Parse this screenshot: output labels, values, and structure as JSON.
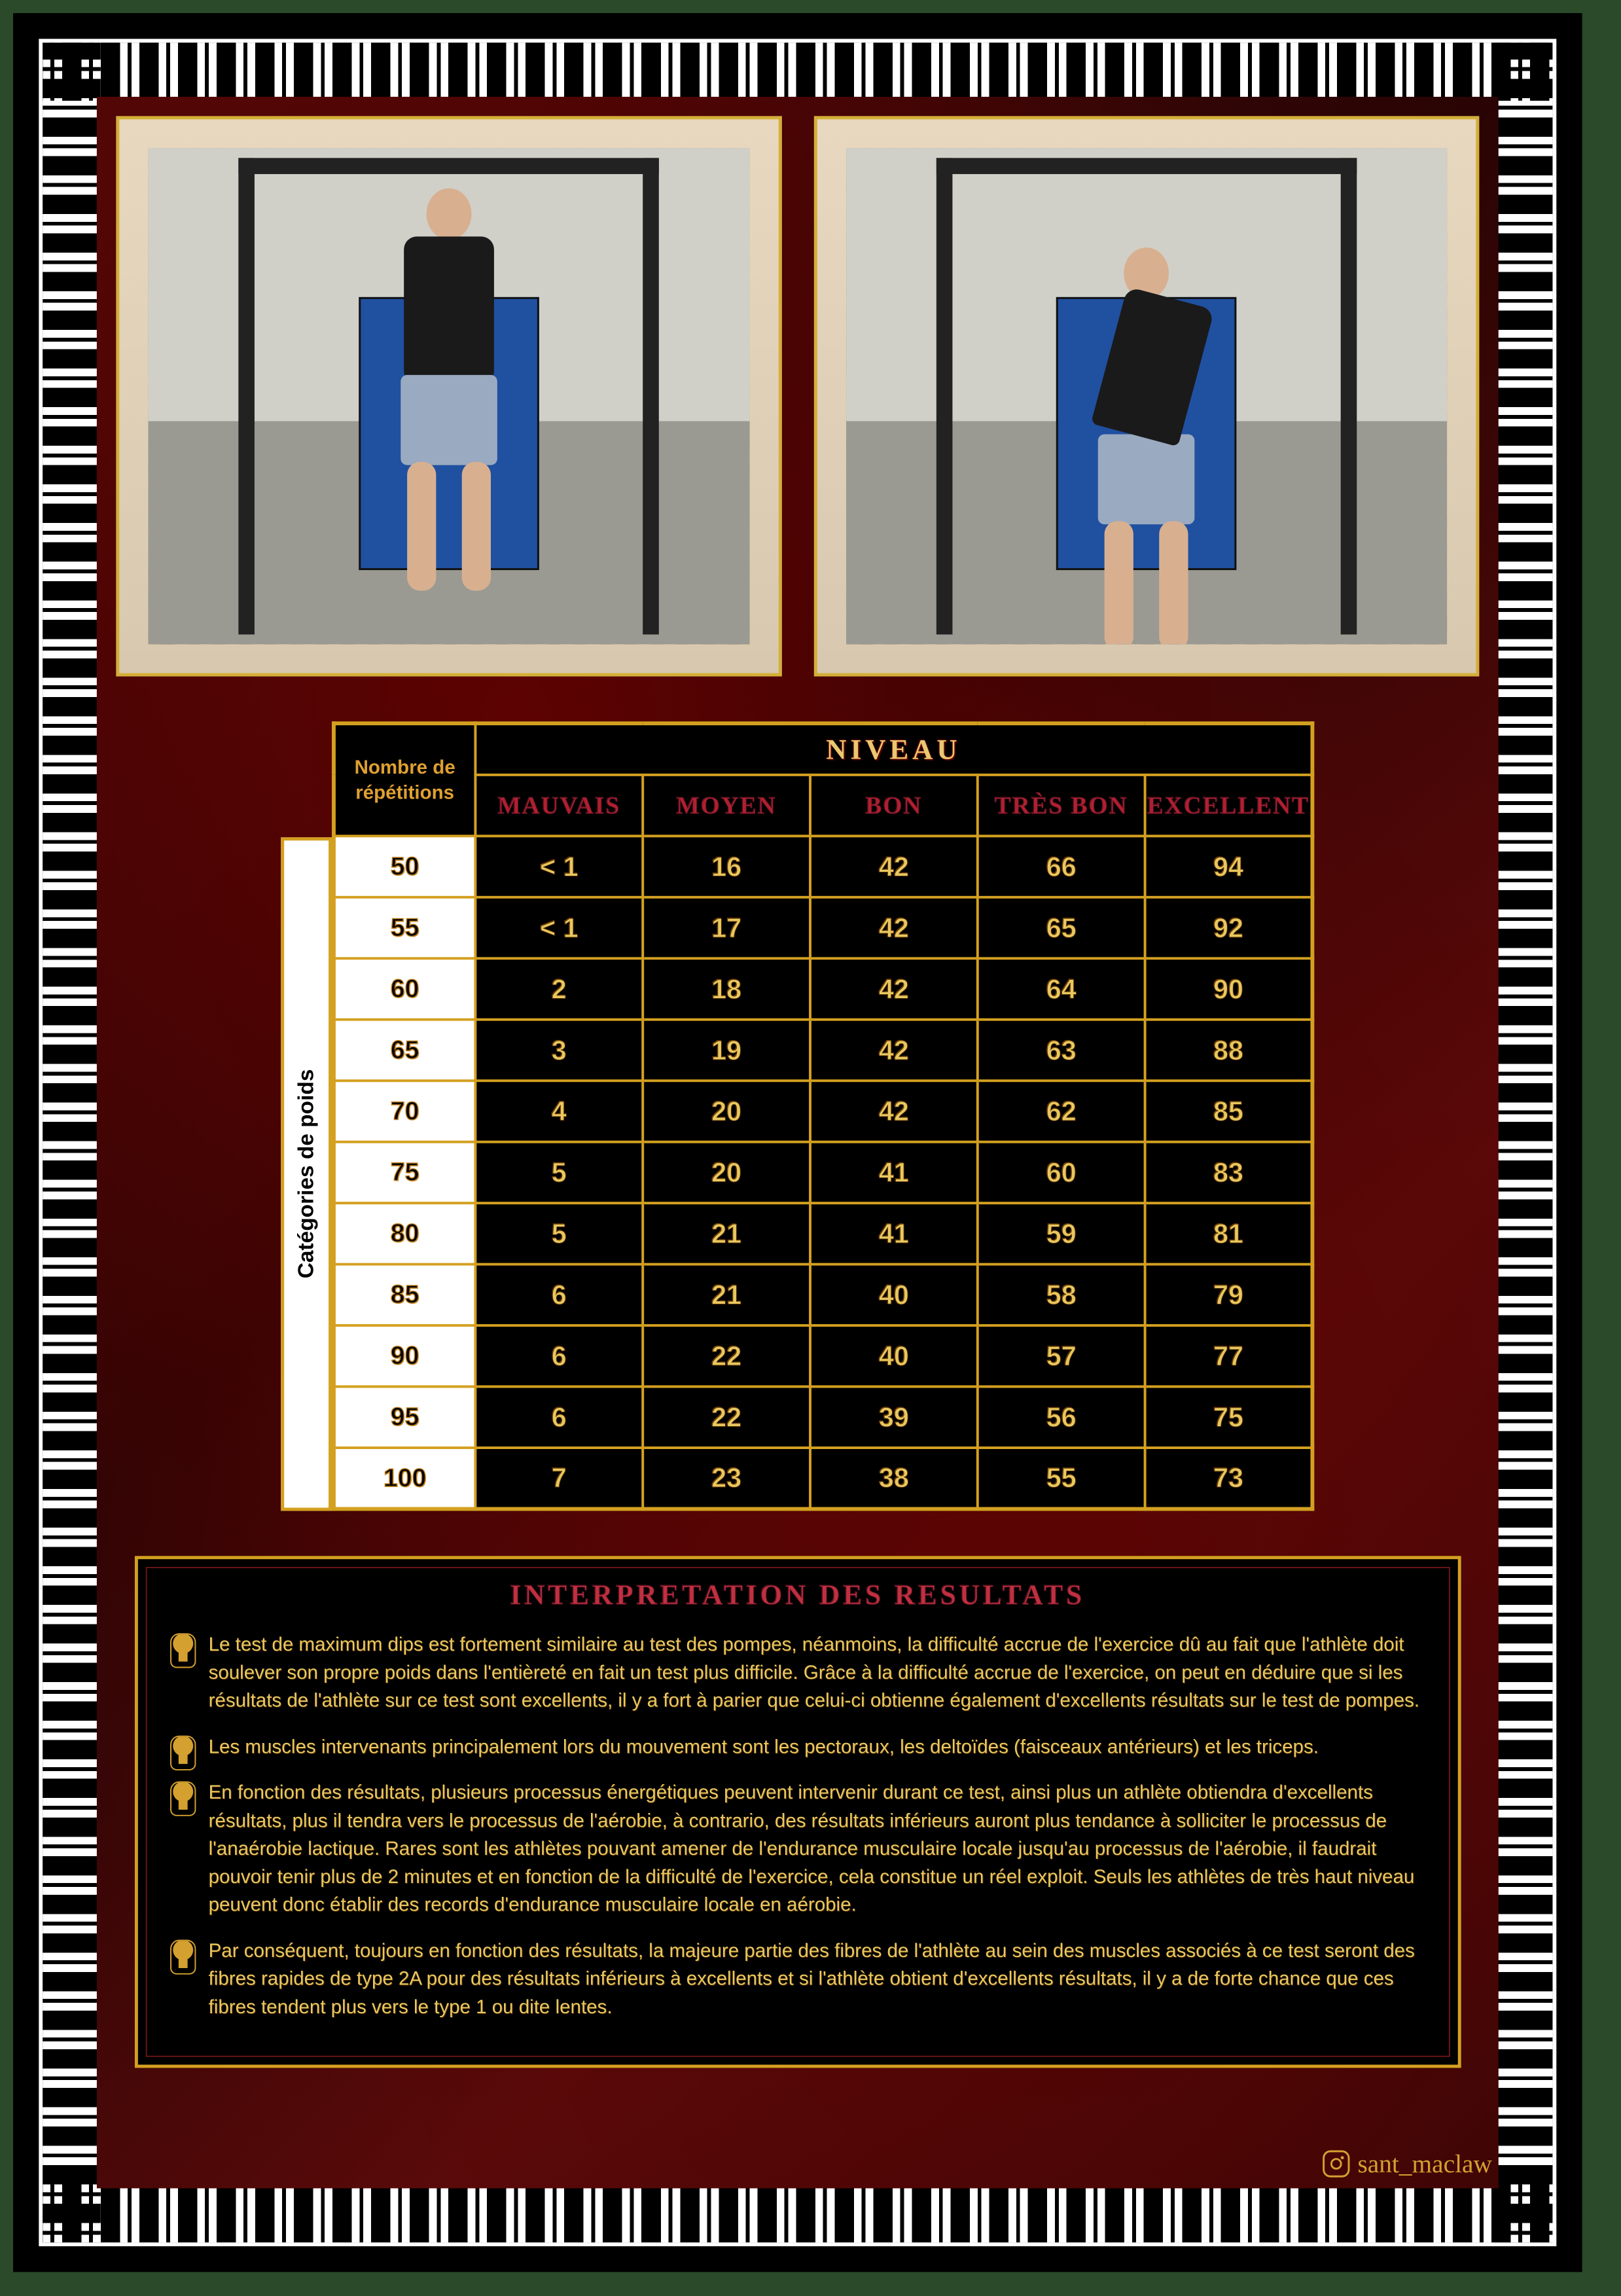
{
  "table": {
    "reps_header": "Nombre de\nrépétitions",
    "niveau_header": "NIVEAU",
    "vert_label": "Catégories de poids",
    "level_headers": [
      "MAUVAIS",
      "MOYEN",
      "BON",
      "TRÈS BON",
      "EXCELLENT"
    ],
    "rows": [
      {
        "w": "50",
        "v": [
          "< 1",
          "16",
          "42",
          "66",
          "94"
        ]
      },
      {
        "w": "55",
        "v": [
          "< 1",
          "17",
          "42",
          "65",
          "92"
        ]
      },
      {
        "w": "60",
        "v": [
          "2",
          "18",
          "42",
          "64",
          "90"
        ]
      },
      {
        "w": "65",
        "v": [
          "3",
          "19",
          "42",
          "63",
          "88"
        ]
      },
      {
        "w": "70",
        "v": [
          "4",
          "20",
          "42",
          "62",
          "85"
        ]
      },
      {
        "w": "75",
        "v": [
          "5",
          "20",
          "41",
          "60",
          "83"
        ]
      },
      {
        "w": "80",
        "v": [
          "5",
          "21",
          "41",
          "59",
          "81"
        ]
      },
      {
        "w": "85",
        "v": [
          "6",
          "21",
          "40",
          "58",
          "79"
        ]
      },
      {
        "w": "90",
        "v": [
          "6",
          "22",
          "40",
          "57",
          "77"
        ]
      },
      {
        "w": "95",
        "v": [
          "6",
          "22",
          "39",
          "56",
          "75"
        ]
      },
      {
        "w": "100",
        "v": [
          "7",
          "23",
          "38",
          "55",
          "73"
        ]
      }
    ]
  },
  "interp": {
    "title": "INTERPRETATION DES RESULTATS",
    "points": [
      "Le test de maximum dips est fortement similaire au test des pompes, néanmoins, la difficulté accrue de l'exercice dû au fait que l'athlète doit soulever son propre poids dans l'entièreté en fait un test plus difficile. Grâce à la difficulté accrue de l'exercice, on peut en déduire que si les résultats de l'athlète sur ce test sont excellents, il y a fort à parier que celui-ci obtienne également d'excellents résultats sur le test de pompes.",
      "Les muscles intervenants principalement lors du mouvement sont les pectoraux, les deltoïdes (faisceaux antérieurs) et les triceps.",
      "En fonction des résultats, plusieurs processus énergétiques peuvent intervenir durant ce test, ainsi plus un athlète obtiendra d'excellents résultats, plus il tendra vers le processus de l'aérobie, à contrario, des résultats inférieurs auront plus tendance à solliciter le processus de l'anaérobie lactique. Rares sont les athlètes pouvant amener de l'endurance musculaire locale jusqu'au processus de l'aérobie, il faudrait pouvoir tenir plus de 2 minutes et en fonction de la difficulté de l'exercice, cela constitue un réel exploit. Seuls les athlètes de très haut niveau peuvent donc établir des records d'endurance musculaire locale en aérobie.",
      "Par conséquent, toujours en fonction des résultats, la majeure partie des fibres de l'athlète au sein des muscles associés à ce test seront des fibres rapides de type 2A pour des résultats inférieurs à excellents et si l'athlète obtient d'excellents résultats, il y a de forte chance que ces fibres tendent plus vers le type 1 ou dite lentes."
    ]
  },
  "footer_handle": "sant_maclaw",
  "colors": {
    "gold": "#d4a020",
    "gold_text": "#e8c860",
    "red_header": "#b02030",
    "border": "#d4af37",
    "bg_red": "#4a0808"
  }
}
